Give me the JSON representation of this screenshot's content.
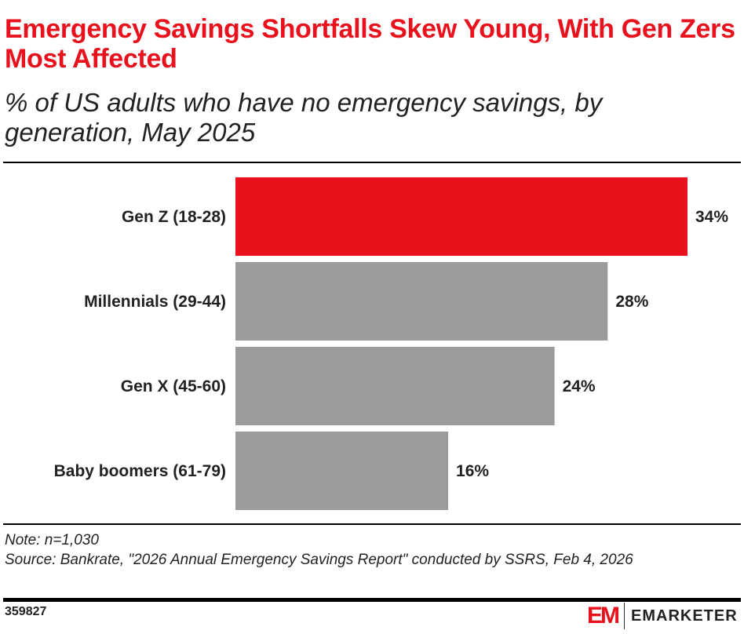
{
  "title": "Emergency Savings Shortfalls Skew Young, With Gen Zers Most Affected",
  "subtitle": "% of US adults who have no emergency savings, by generation, May 2025",
  "chart_data": {
    "type": "bar",
    "orientation": "horizontal",
    "categories": [
      "Gen Z (18-28)",
      "Millennials (29-44)",
      "Gen X (45-60)",
      "Baby boomers (61-79)"
    ],
    "values": [
      34,
      28,
      24,
      16
    ],
    "labels": [
      "34%",
      "28%",
      "24%",
      "16%"
    ],
    "colors": [
      "#e8111c",
      "#9b9b9b",
      "#9b9b9b",
      "#9b9b9b"
    ],
    "xlim": [
      0,
      34
    ],
    "grid": false
  },
  "note": "Note: n=1,030",
  "source": "Source: Bankrate, \"2026 Annual Emergency Savings Report\" conducted by SSRS, Feb 4, 2026",
  "footer": {
    "id": "359827",
    "logo_mark": "EM",
    "brand": "EMARKETER"
  },
  "colors": {
    "accent": "#e8111c",
    "bar": "#9b9b9b"
  }
}
